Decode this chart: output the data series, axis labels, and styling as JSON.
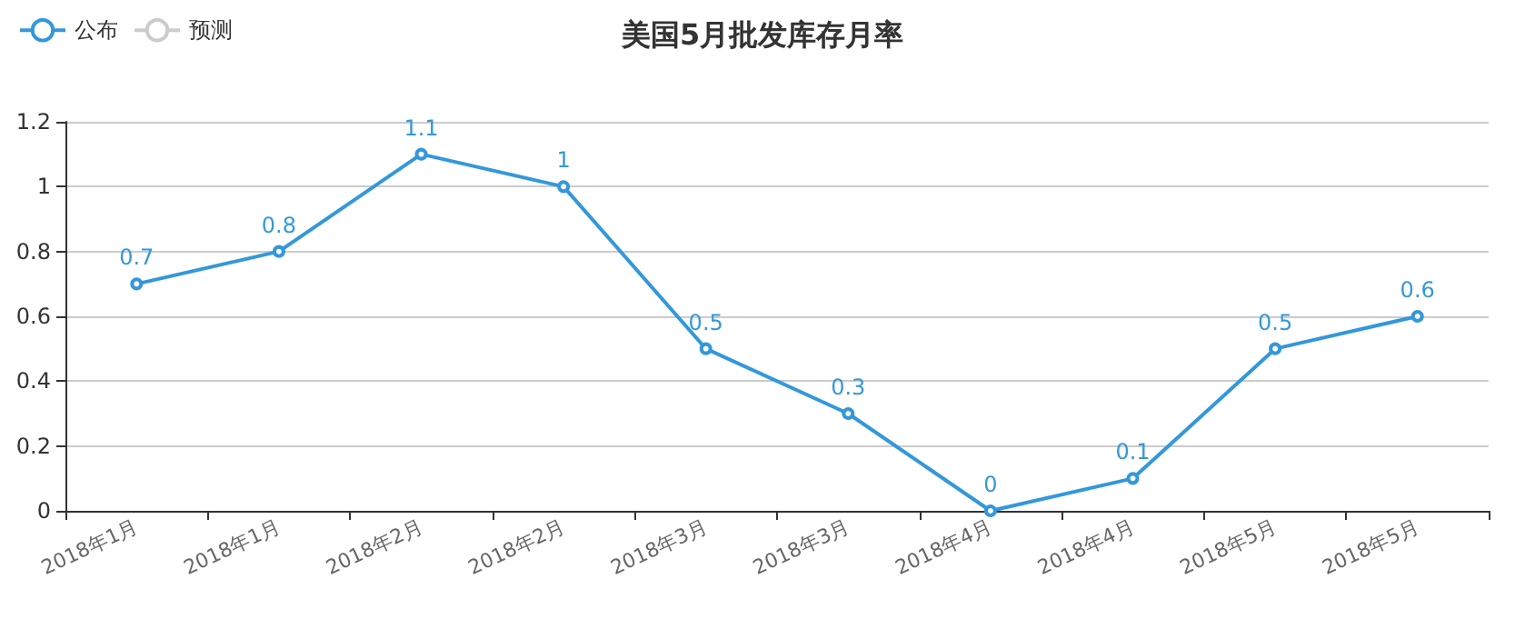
{
  "chart_data": {
    "type": "line",
    "title": "美国5月批发库存月率",
    "categories": [
      "2018年1月",
      "2018年1月",
      "2018年2月",
      "2018年2月",
      "2018年3月",
      "2018年3月",
      "2018年4月",
      "2018年4月",
      "2018年5月",
      "2018年5月"
    ],
    "series": [
      {
        "name": "公布",
        "color": "#3398db",
        "values": [
          0.7,
          0.8,
          1.1,
          1,
          0.5,
          0.3,
          0,
          0.1,
          0.5,
          0.6
        ]
      },
      {
        "name": "预测",
        "color": "#cccccc",
        "values": [
          null,
          null,
          null,
          null,
          null,
          null,
          null,
          null,
          null,
          null
        ]
      }
    ],
    "ylim": [
      0,
      1.2
    ],
    "yticks": [
      0,
      0.2,
      0.4,
      0.6,
      0.8,
      1,
      1.2
    ],
    "grid": "y",
    "legend": "top left",
    "marker": "circle",
    "data_labels": true
  }
}
